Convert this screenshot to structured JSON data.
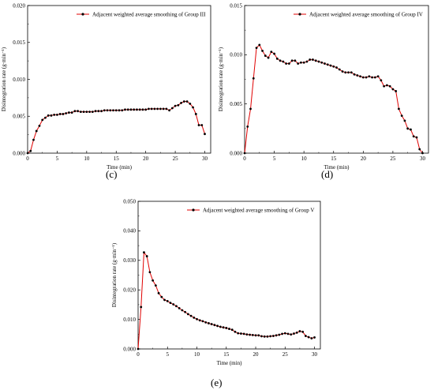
{
  "chart_data": [
    {
      "type": "line",
      "panel_label": "(c)",
      "xlabel": "Time (min)",
      "ylabel": "Disintegration rate (g·min⁻¹)",
      "xlim": [
        0,
        31
      ],
      "ylim": [
        0,
        0.02
      ],
      "xticks": [
        "0",
        "5",
        "10",
        "15",
        "20",
        "25",
        "30"
      ],
      "yticks": [
        "0.000",
        "0.005",
        "0.010",
        "0.015",
        "0.020"
      ],
      "legend": "top-left",
      "series": [
        {
          "name": "Adjacent weighted average smoothing of Group III",
          "color": "#e00000",
          "marker_color": "#000000",
          "x": [
            0,
            0.5,
            1,
            1.5,
            2,
            2.5,
            3,
            3.5,
            4,
            4.5,
            5,
            5.5,
            6,
            6.5,
            7,
            7.5,
            8,
            8.5,
            9,
            9.5,
            10,
            10.5,
            11,
            11.5,
            12,
            12.5,
            13,
            13.5,
            14,
            14.5,
            15,
            15.5,
            16,
            16.5,
            17,
            17.5,
            18,
            18.5,
            19,
            19.5,
            20,
            20.5,
            21,
            21.5,
            22,
            22.5,
            23,
            23.5,
            24,
            24.5,
            25,
            25.5,
            26,
            26.5,
            27,
            27.5,
            28,
            28.5,
            29,
            29.5,
            30
          ],
          "y": [
            0,
            0.0003,
            0.0018,
            0.003,
            0.0037,
            0.0045,
            0.0048,
            0.0051,
            0.0051,
            0.0052,
            0.0052,
            0.0053,
            0.0053,
            0.0054,
            0.0055,
            0.0055,
            0.0057,
            0.0057,
            0.0056,
            0.0056,
            0.0056,
            0.0056,
            0.0056,
            0.0057,
            0.0057,
            0.0057,
            0.0058,
            0.0058,
            0.0058,
            0.0058,
            0.0058,
            0.0058,
            0.0058,
            0.0059,
            0.0059,
            0.0059,
            0.0059,
            0.0059,
            0.0059,
            0.0059,
            0.0059,
            0.006,
            0.006,
            0.006,
            0.006,
            0.006,
            0.006,
            0.006,
            0.0058,
            0.0061,
            0.0064,
            0.0065,
            0.0068,
            0.007,
            0.007,
            0.0067,
            0.0062,
            0.0053,
            0.0038,
            0.0038,
            0.0026
          ]
        }
      ]
    },
    {
      "type": "line",
      "panel_label": "(d)",
      "xlabel": "Time (min)",
      "ylabel": "Disintegration rate (g·min⁻¹)",
      "xlim": [
        0,
        31
      ],
      "ylim": [
        0,
        0.015
      ],
      "xticks": [
        "0",
        "5",
        "10",
        "15",
        "20",
        "25",
        "30"
      ],
      "yticks": [
        "0.000",
        "0.005",
        "0.010",
        "0.015"
      ],
      "legend": "top-left",
      "series": [
        {
          "name": "Adjacent weighted average smoothing of Group IV",
          "color": "#e00000",
          "marker_color": "#000000",
          "x": [
            0,
            0.5,
            1,
            1.5,
            2,
            2.5,
            3,
            3.5,
            4,
            4.5,
            5,
            5.5,
            6,
            6.5,
            7,
            7.5,
            8,
            8.5,
            9,
            9.5,
            10,
            10.5,
            11,
            11.5,
            12,
            12.5,
            13,
            13.5,
            14,
            14.5,
            15,
            15.5,
            16,
            16.5,
            17,
            17.5,
            18,
            18.5,
            19,
            19.5,
            20,
            20.5,
            21,
            21.5,
            22,
            22.5,
            23,
            23.5,
            24,
            24.5,
            25,
            25.5,
            26,
            26.5,
            27,
            27.5,
            28,
            28.5,
            29,
            29.5,
            30
          ],
          "y": [
            0,
            0.0027,
            0.0045,
            0.0076,
            0.0107,
            0.011,
            0.0104,
            0.0099,
            0.0097,
            0.0103,
            0.0101,
            0.0096,
            0.0094,
            0.0093,
            0.0091,
            0.0091,
            0.0094,
            0.0094,
            0.0091,
            0.0092,
            0.0092,
            0.0093,
            0.0095,
            0.0095,
            0.0094,
            0.0093,
            0.0092,
            0.0091,
            0.009,
            0.0089,
            0.0088,
            0.0087,
            0.0085,
            0.0083,
            0.0082,
            0.0082,
            0.0082,
            0.008,
            0.0079,
            0.0078,
            0.0077,
            0.0077,
            0.0078,
            0.0077,
            0.0077,
            0.0078,
            0.0074,
            0.0068,
            0.0069,
            0.0068,
            0.0065,
            0.0063,
            0.0045,
            0.0038,
            0.0033,
            0.0025,
            0.0024,
            0.0017,
            0.0016,
            0.0004,
            0
          ]
        }
      ]
    },
    {
      "type": "line",
      "panel_label": "(e)",
      "xlabel": "Time (min)",
      "ylabel": "Disintegration rate (g·min⁻¹)",
      "xlim": [
        0,
        31
      ],
      "ylim": [
        0,
        0.05
      ],
      "xticks": [
        "0",
        "5",
        "10",
        "15",
        "20",
        "25",
        "30"
      ],
      "yticks": [
        "0.000",
        "0.010",
        "0.020",
        "0.030",
        "0.040",
        "0.050"
      ],
      "legend": "top-left",
      "series": [
        {
          "name": "Adjacent weighted average smoothing of Group V",
          "color": "#e00000",
          "marker_color": "#000000",
          "x": [
            0,
            0.5,
            1,
            1.5,
            2,
            2.5,
            3,
            3.5,
            4,
            4.5,
            5,
            5.5,
            6,
            6.5,
            7,
            7.5,
            8,
            8.5,
            9,
            9.5,
            10,
            10.5,
            11,
            11.5,
            12,
            12.5,
            13,
            13.5,
            14,
            14.5,
            15,
            15.5,
            16,
            16.5,
            17,
            17.5,
            18,
            18.5,
            19,
            19.5,
            20,
            20.5,
            21,
            21.5,
            22,
            22.5,
            23,
            23.5,
            24,
            24.5,
            25,
            25.5,
            26,
            26.5,
            27,
            27.5,
            28,
            28.5,
            29,
            29.5,
            30
          ],
          "y": [
            0,
            0.0142,
            0.0327,
            0.0314,
            0.026,
            0.0232,
            0.0215,
            0.0189,
            0.0176,
            0.0166,
            0.0162,
            0.0156,
            0.0151,
            0.0145,
            0.0138,
            0.0131,
            0.0125,
            0.0118,
            0.0112,
            0.0106,
            0.0101,
            0.0097,
            0.0094,
            0.009,
            0.0087,
            0.0084,
            0.0081,
            0.0078,
            0.0075,
            0.0073,
            0.0071,
            0.0068,
            0.0065,
            0.0058,
            0.0053,
            0.0052,
            0.0051,
            0.0049,
            0.0048,
            0.0047,
            0.0046,
            0.0046,
            0.0043,
            0.0042,
            0.0042,
            0.0043,
            0.0044,
            0.0046,
            0.0048,
            0.0051,
            0.0053,
            0.0051,
            0.0049,
            0.0052,
            0.0055,
            0.006,
            0.0058,
            0.0044,
            0.004,
            0.0036,
            0.0039
          ]
        }
      ]
    }
  ]
}
